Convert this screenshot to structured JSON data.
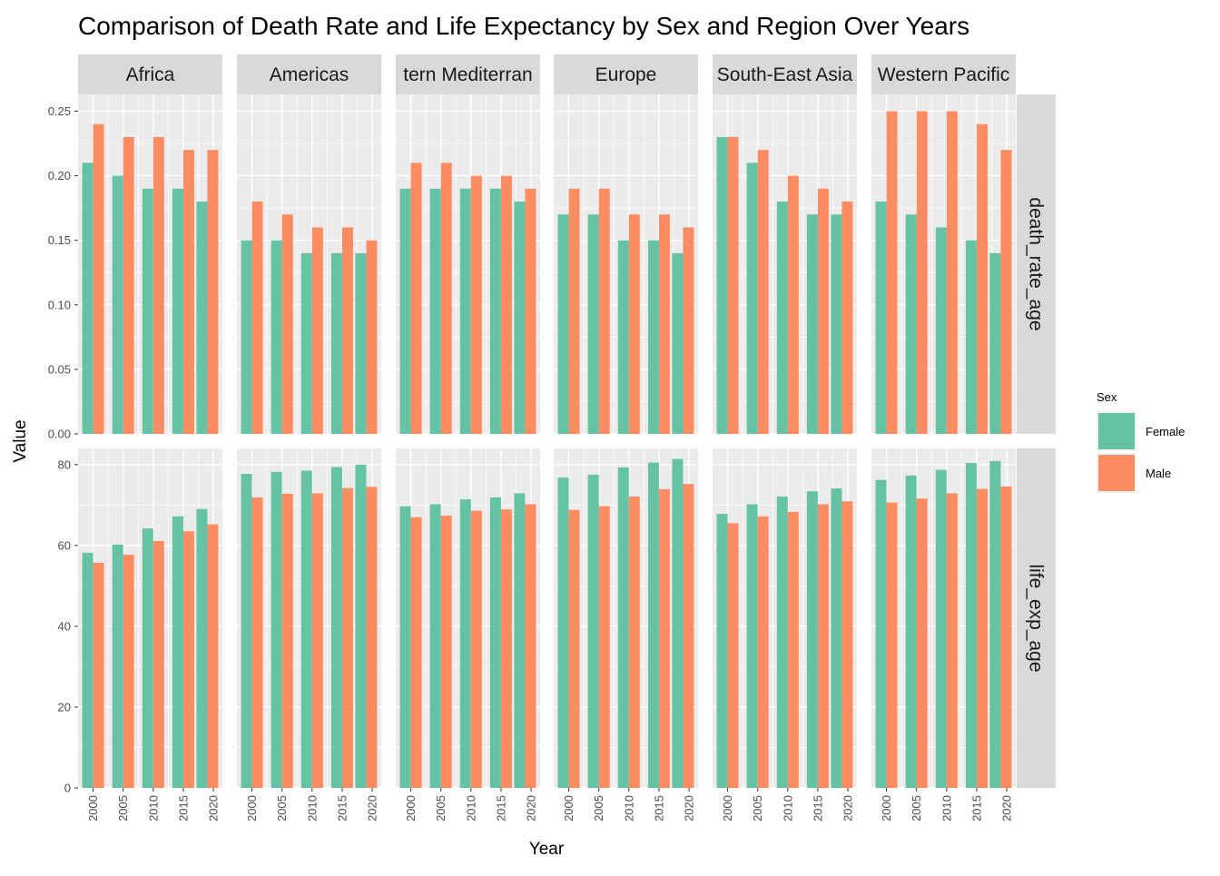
{
  "chart_data": {
    "type": "bar",
    "title": "Comparison of Death Rate and Life Expectancy by Sex and Region Over Years",
    "xlabel": "Year",
    "ylabel": "Value",
    "facet_columns": [
      "Africa",
      "Americas",
      "Eastern Mediterranean",
      "Europe",
      "South-East Asia",
      "Western Pacific"
    ],
    "facet_column_labels": [
      "Africa",
      "Americas",
      "tern Mediterran",
      "Europe",
      "South-East Asia",
      "Western Pacific"
    ],
    "facet_rows": [
      "death_rate_age",
      "life_exp_age"
    ],
    "x_ticks": [
      2000,
      2005,
      2010,
      2015,
      2020
    ],
    "y_ticks": {
      "death_rate_age": [
        "0.00",
        "0.05",
        "0.10",
        "0.15",
        "0.20",
        "0.25"
      ],
      "life_exp_age": [
        "0",
        "20",
        "40",
        "60",
        "80"
      ]
    },
    "ylim": {
      "death_rate_age": [
        0,
        0.263
      ],
      "life_exp_age": [
        0,
        84
      ]
    },
    "legend": {
      "title": "Sex",
      "position": "right",
      "entries": [
        {
          "name": "Female",
          "color": "#66C2A5"
        },
        {
          "name": "Male",
          "color": "#FC8D62"
        }
      ]
    },
    "grid": true,
    "panels": {
      "death_rate_age": {
        "Africa": {
          "Female": [
            [
              2000,
              0.21
            ],
            [
              2005,
              0.2
            ],
            [
              2010,
              0.19
            ],
            [
              2015,
              0.19
            ],
            [
              2019,
              0.18
            ]
          ],
          "Male": [
            [
              2000,
              0.24
            ],
            [
              2005,
              0.23
            ],
            [
              2010,
              0.23
            ],
            [
              2015,
              0.22
            ],
            [
              2019,
              0.22
            ]
          ]
        },
        "Americas": {
          "Female": [
            [
              2000,
              0.15
            ],
            [
              2005,
              0.15
            ],
            [
              2010,
              0.14
            ],
            [
              2015,
              0.14
            ],
            [
              2019,
              0.14
            ]
          ],
          "Male": [
            [
              2000,
              0.18
            ],
            [
              2005,
              0.17
            ],
            [
              2010,
              0.16
            ],
            [
              2015,
              0.16
            ],
            [
              2019,
              0.15
            ]
          ]
        },
        "Eastern Mediterranean": {
          "Female": [
            [
              2000,
              0.19
            ],
            [
              2005,
              0.19
            ],
            [
              2010,
              0.19
            ],
            [
              2015,
              0.19
            ],
            [
              2019,
              0.18
            ]
          ],
          "Male": [
            [
              2000,
              0.21
            ],
            [
              2005,
              0.21
            ],
            [
              2010,
              0.2
            ],
            [
              2015,
              0.2
            ],
            [
              2019,
              0.19
            ]
          ]
        },
        "Europe": {
          "Female": [
            [
              2000,
              0.17
            ],
            [
              2005,
              0.17
            ],
            [
              2010,
              0.15
            ],
            [
              2015,
              0.15
            ],
            [
              2019,
              0.14
            ]
          ],
          "Male": [
            [
              2000,
              0.19
            ],
            [
              2005,
              0.19
            ],
            [
              2010,
              0.17
            ],
            [
              2015,
              0.17
            ],
            [
              2019,
              0.16
            ]
          ]
        },
        "South-East Asia": {
          "Female": [
            [
              2000,
              0.23
            ],
            [
              2005,
              0.21
            ],
            [
              2010,
              0.18
            ],
            [
              2015,
              0.17
            ],
            [
              2019,
              0.17
            ]
          ],
          "Male": [
            [
              2000,
              0.23
            ],
            [
              2005,
              0.22
            ],
            [
              2010,
              0.2
            ],
            [
              2015,
              0.19
            ],
            [
              2019,
              0.18
            ]
          ]
        },
        "Western Pacific": {
          "Female": [
            [
              2000,
              0.18
            ],
            [
              2005,
              0.17
            ],
            [
              2010,
              0.16
            ],
            [
              2015,
              0.15
            ],
            [
              2019,
              0.14
            ]
          ],
          "Male": [
            [
              2000,
              0.25
            ],
            [
              2005,
              0.25
            ],
            [
              2010,
              0.25
            ],
            [
              2015,
              0.24
            ],
            [
              2019,
              0.22
            ]
          ]
        }
      },
      "life_exp_age": {
        "Africa": {
          "Female": [
            [
              2000,
              58.2
            ],
            [
              2005,
              60.2
            ],
            [
              2010,
              64.2
            ],
            [
              2015,
              67.2
            ],
            [
              2019,
              69.0
            ]
          ],
          "Male": [
            [
              2000,
              55.7
            ],
            [
              2005,
              57.7
            ],
            [
              2010,
              61.1
            ],
            [
              2015,
              63.5
            ],
            [
              2019,
              65.2
            ]
          ]
        },
        "Americas": {
          "Female": [
            [
              2000,
              77.7
            ],
            [
              2005,
              78.2
            ],
            [
              2010,
              78.5
            ],
            [
              2015,
              79.4
            ],
            [
              2019,
              80.0
            ]
          ],
          "Male": [
            [
              2000,
              71.9
            ],
            [
              2005,
              72.8
            ],
            [
              2010,
              72.9
            ],
            [
              2015,
              74.2
            ],
            [
              2019,
              74.5
            ]
          ]
        },
        "Eastern Mediterranean": {
          "Female": [
            [
              2000,
              69.7
            ],
            [
              2005,
              70.2
            ],
            [
              2010,
              71.4
            ],
            [
              2015,
              71.9
            ],
            [
              2019,
              72.9
            ]
          ],
          "Male": [
            [
              2000,
              67.0
            ],
            [
              2005,
              67.4
            ],
            [
              2010,
              68.6
            ],
            [
              2015,
              68.9
            ],
            [
              2019,
              70.2
            ]
          ]
        },
        "Europe": {
          "Female": [
            [
              2000,
              76.8
            ],
            [
              2005,
              77.5
            ],
            [
              2010,
              79.3
            ],
            [
              2015,
              80.5
            ],
            [
              2019,
              81.4
            ]
          ],
          "Male": [
            [
              2000,
              68.8
            ],
            [
              2005,
              69.7
            ],
            [
              2010,
              72.1
            ],
            [
              2015,
              73.9
            ],
            [
              2019,
              75.2
            ]
          ]
        },
        "South-East Asia": {
          "Female": [
            [
              2000,
              67.8
            ],
            [
              2005,
              70.2
            ],
            [
              2010,
              72.1
            ],
            [
              2015,
              73.4
            ],
            [
              2019,
              74.1
            ]
          ],
          "Male": [
            [
              2000,
              65.5
            ],
            [
              2005,
              67.2
            ],
            [
              2010,
              68.3
            ],
            [
              2015,
              70.2
            ],
            [
              2019,
              70.9
            ]
          ]
        },
        "Western Pacific": {
          "Female": [
            [
              2000,
              76.2
            ],
            [
              2005,
              77.3
            ],
            [
              2010,
              78.7
            ],
            [
              2015,
              80.4
            ],
            [
              2019,
              80.9
            ]
          ],
          "Male": [
            [
              2000,
              70.6
            ],
            [
              2005,
              71.6
            ],
            [
              2010,
              72.9
            ],
            [
              2015,
              74.0
            ],
            [
              2019,
              74.6
            ]
          ]
        }
      }
    }
  }
}
